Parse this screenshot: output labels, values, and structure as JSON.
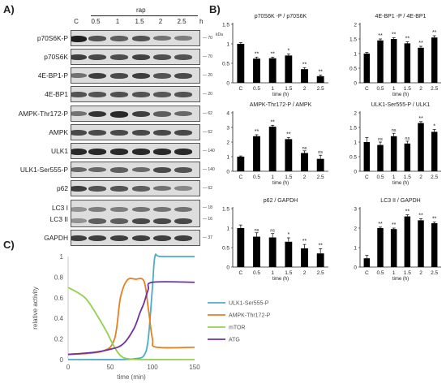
{
  "panels": {
    "a": "A)",
    "b": "B)",
    "c": "C)"
  },
  "blots": {
    "header": {
      "treatment": "rap",
      "unit": "h",
      "lanes": [
        "C",
        "0.5",
        "1",
        "1.5",
        "2",
        "2.5"
      ]
    },
    "kda_unit": "kDa",
    "rows": [
      {
        "label": "p70S6K-P",
        "marker": "70",
        "levels": [
          0.95,
          0.7,
          0.65,
          0.7,
          0.55,
          0.5
        ]
      },
      {
        "label": "p70S6K",
        "marker": "70",
        "levels": [
          0.8,
          0.75,
          0.72,
          0.78,
          0.72,
          0.7
        ]
      },
      {
        "label": "4E-BP1-P",
        "marker": "20",
        "levels": [
          0.55,
          0.8,
          0.75,
          0.8,
          0.7,
          0.75
        ]
      },
      {
        "label": "4E-BP1",
        "marker": "20",
        "levels": [
          0.7,
          0.7,
          0.72,
          0.7,
          0.68,
          0.7
        ]
      },
      {
        "label": "AMPK-Thr172-P",
        "marker": "62",
        "levels": [
          0.55,
          0.85,
          0.9,
          0.8,
          0.65,
          0.6
        ]
      },
      {
        "label": "AMPK",
        "marker": "62",
        "levels": [
          0.75,
          0.75,
          0.75,
          0.75,
          0.75,
          0.75
        ]
      },
      {
        "label": "ULK1",
        "marker": "140",
        "levels": [
          0.9,
          0.9,
          0.9,
          0.9,
          0.9,
          0.9
        ]
      },
      {
        "label": "ULK1-Ser555-P",
        "marker": "140",
        "levels": [
          0.6,
          0.6,
          0.65,
          0.6,
          0.75,
          0.7
        ]
      },
      {
        "label": "p62",
        "marker": "62",
        "levels": [
          0.8,
          0.7,
          0.7,
          0.65,
          0.55,
          0.45
        ]
      },
      {
        "label": "LC3 I",
        "marker": "18",
        "levels": [
          0.4,
          0.5,
          0.5,
          0.55,
          0.55,
          0.55
        ]
      },
      {
        "label": "LC3 II",
        "marker": "16",
        "levels": [
          0.4,
          0.65,
          0.65,
          0.75,
          0.75,
          0.75
        ]
      },
      {
        "label": "GAPDH",
        "marker": "37",
        "levels": [
          0.8,
          0.8,
          0.8,
          0.8,
          0.8,
          0.8
        ]
      }
    ]
  },
  "chart_data": [
    {
      "type": "bar",
      "title": "p70S6K -P / p70S6K",
      "categories": [
        "C",
        "0.5",
        "1",
        "1.5",
        "2",
        "2.5"
      ],
      "values": [
        1.0,
        0.62,
        0.63,
        0.7,
        0.35,
        0.17
      ],
      "errors": [
        0.03,
        0.04,
        0.03,
        0.04,
        0.04,
        0.03
      ],
      "sig": [
        "",
        "**",
        "**",
        "*",
        "**",
        "**"
      ],
      "xlabel": "time (h)",
      "ylim": [
        0,
        1.5
      ],
      "yticks": [
        "0",
        "0.5",
        "1",
        "1.5"
      ]
    },
    {
      "type": "bar",
      "title": "4E-BP1 -P / 4E-BP1",
      "categories": [
        "C",
        "0.5",
        "1",
        "1.5",
        "2",
        "2.5"
      ],
      "values": [
        1.0,
        1.45,
        1.5,
        1.35,
        1.2,
        1.55
      ],
      "errors": [
        0.04,
        0.05,
        0.04,
        0.05,
        0.05,
        0.06
      ],
      "sig": [
        "",
        "**",
        "**",
        "**",
        "**",
        "**"
      ],
      "xlabel": "time (h)",
      "ylim": [
        0,
        2
      ],
      "yticks": [
        "0",
        "0.5",
        "1",
        "1.5",
        "2"
      ]
    },
    {
      "type": "bar",
      "title": "AMPK-Thr172-P / AMPK",
      "categories": [
        "C",
        "0.5",
        "1",
        "1.5",
        "2",
        "2.5"
      ],
      "values": [
        1.0,
        2.4,
        3.05,
        2.2,
        1.25,
        0.85
      ],
      "errors": [
        0.05,
        0.1,
        0.1,
        0.1,
        0.15,
        0.25
      ],
      "sig": [
        "",
        "**",
        "**",
        "**",
        "ns",
        "ns"
      ],
      "xlabel": "time (h)",
      "ylim": [
        0,
        4
      ],
      "yticks": [
        "0",
        "1",
        "2",
        "3",
        "4"
      ]
    },
    {
      "type": "bar",
      "title": "ULK1-Ser555-P / ULK1",
      "categories": [
        "C",
        "0.5",
        "1",
        "1.5",
        "2",
        "2.5"
      ],
      "values": [
        1.0,
        0.9,
        1.2,
        0.95,
        1.65,
        1.35
      ],
      "errors": [
        0.15,
        0.1,
        0.1,
        0.08,
        0.05,
        0.08
      ],
      "sig": [
        "",
        "ns",
        "ns",
        "ns",
        "**",
        "*"
      ],
      "xlabel": "time (h)",
      "ylim": [
        0,
        2
      ],
      "yticks": [
        "0",
        "0.5",
        "1",
        "1.5",
        "2"
      ]
    },
    {
      "type": "bar",
      "title": "p62 / GAPDH",
      "categories": [
        "C",
        "0.5",
        "1",
        "1.5",
        "2",
        "2.5"
      ],
      "values": [
        1.0,
        0.78,
        0.76,
        0.65,
        0.48,
        0.35
      ],
      "errors": [
        0.08,
        0.1,
        0.1,
        0.1,
        0.1,
        0.12
      ],
      "sig": [
        "",
        "ns",
        "ns",
        "*",
        "**",
        "**"
      ],
      "xlabel": "time (h)",
      "ylim": [
        0,
        1.5
      ],
      "yticks": [
        "0",
        "0.5",
        "1",
        "1.5"
      ]
    },
    {
      "type": "bar",
      "title": "LC3 II / GAPDH",
      "categories": [
        "C",
        "0.5",
        "1",
        "1.5",
        "2",
        "2.5"
      ],
      "values": [
        0.45,
        2.0,
        1.95,
        2.6,
        2.4,
        2.25
      ],
      "errors": [
        0.15,
        0.05,
        0.05,
        0.08,
        0.08,
        0.06
      ],
      "sig": [
        "",
        "**",
        "**",
        "**",
        "**",
        "**"
      ],
      "xlabel": "time (h)",
      "ylim": [
        0,
        3
      ],
      "yticks": [
        "0",
        "1",
        "2",
        "3"
      ]
    },
    {
      "type": "line",
      "xlabel": "time (min)",
      "ylabel": "relative activity",
      "xlim": [
        0,
        150
      ],
      "ylim": [
        0,
        1
      ],
      "xticks": [
        "0",
        "50",
        "100",
        "150"
      ],
      "yticks": [
        "0",
        "0.2",
        "0.4",
        "0.6",
        "0.8",
        "1"
      ],
      "series": [
        {
          "name": "ULK1-Ser555-P",
          "color": "#4bacc6",
          "x": [
            0,
            60,
            80,
            90,
            95,
            100,
            103,
            110,
            150
          ],
          "y": [
            0.0,
            0.0,
            0.01,
            0.04,
            0.2,
            0.7,
            1.0,
            1.0,
            1.0
          ]
        },
        {
          "name": "AMPK-Thr172-P",
          "color": "#e67e22",
          "x": [
            0,
            40,
            55,
            62,
            70,
            80,
            90,
            95,
            100,
            105,
            150
          ],
          "y": [
            0.05,
            0.08,
            0.2,
            0.6,
            0.77,
            0.78,
            0.76,
            0.5,
            0.2,
            0.12,
            0.12
          ]
        },
        {
          "name": "mTOR",
          "color": "#92d050",
          "x": [
            0,
            20,
            35,
            45,
            55,
            62,
            70,
            90,
            150
          ],
          "y": [
            0.7,
            0.6,
            0.42,
            0.28,
            0.12,
            0.04,
            0.01,
            0.0,
            0.0
          ]
        },
        {
          "name": "ATG",
          "color": "#7030a0",
          "x": [
            0,
            30,
            50,
            65,
            78,
            85,
            90,
            95,
            100,
            150
          ],
          "y": [
            0.05,
            0.07,
            0.1,
            0.15,
            0.3,
            0.45,
            0.55,
            0.68,
            0.75,
            0.75
          ]
        }
      ]
    }
  ]
}
